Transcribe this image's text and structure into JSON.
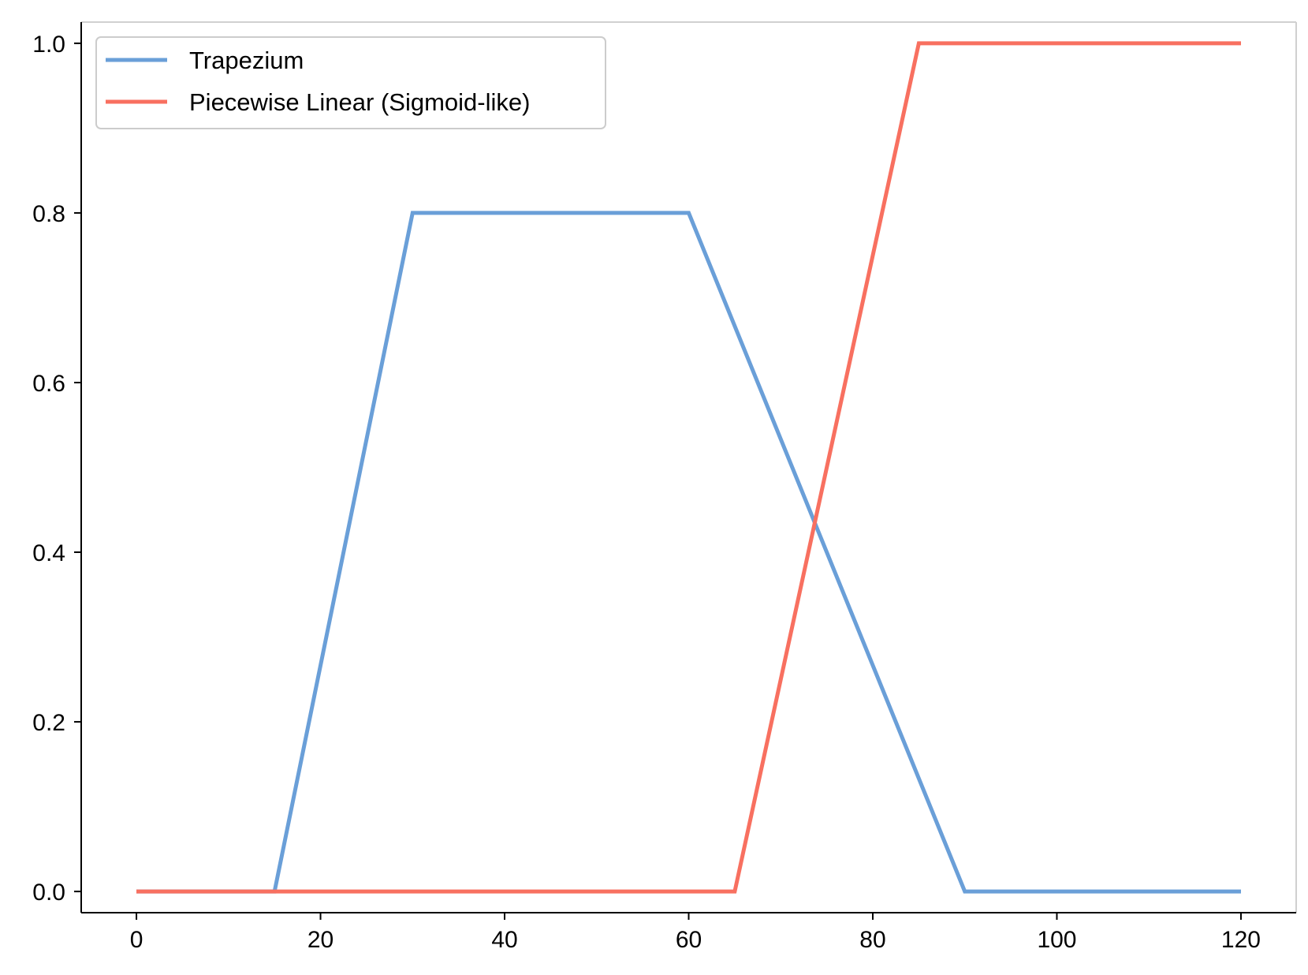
{
  "chart_data": {
    "type": "line",
    "title": "",
    "xlabel": "",
    "ylabel": "",
    "xlim": [
      -6,
      126
    ],
    "ylim": [
      -0.025,
      1.025
    ],
    "x_ticks": [
      0,
      20,
      40,
      60,
      80,
      100,
      120
    ],
    "y_ticks": [
      0.0,
      0.2,
      0.4,
      0.6,
      0.8,
      1.0
    ],
    "x_tick_labels": [
      "0",
      "20",
      "40",
      "60",
      "80",
      "100",
      "120"
    ],
    "y_tick_labels": [
      "0.0",
      "0.2",
      "0.4",
      "0.6",
      "0.8",
      "1.0"
    ],
    "grid": false,
    "legend_position": "top-left",
    "series": [
      {
        "name": "Trapezium",
        "color": "#6a9fd8",
        "x": [
          0,
          15,
          30,
          60,
          90,
          120
        ],
        "y": [
          0,
          0,
          0.8,
          0.8,
          0,
          0
        ]
      },
      {
        "name": "Piecewise Linear (Sigmoid-like)",
        "color": "#f87060",
        "x": [
          0,
          65,
          85,
          120
        ],
        "y": [
          0,
          0,
          1.0,
          1.0
        ]
      }
    ]
  }
}
